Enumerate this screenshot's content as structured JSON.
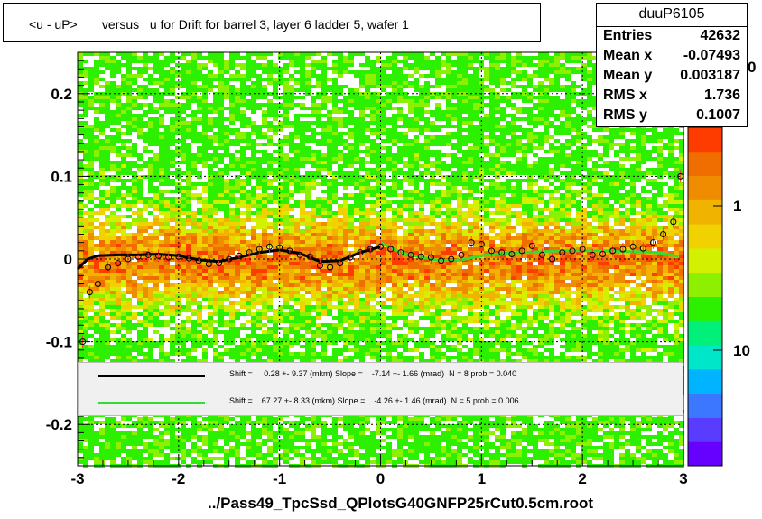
{
  "title": "<u - uP>       versus   u for Drift for barrel 3, layer 6 ladder 5, wafer 1",
  "footer": "../Pass49_TpcSsd_QPlotsG40GNFP25rCut0.5cm.root",
  "stats": {
    "name": "duuP6105",
    "rows": [
      {
        "label": "Entries",
        "value": "42632"
      },
      {
        "label": "Mean x",
        "value": "-0.07493"
      },
      {
        "label": "Mean y",
        "value": "0.003187"
      },
      {
        "label": "RMS x",
        "value": "1.736"
      },
      {
        "label": "RMS y",
        "value": "0.1007"
      }
    ]
  },
  "legend": [
    {
      "color": "#000000",
      "text": "Shift =     0.28 +- 9.37 (mkm) Slope =    -7.14 +- 1.66 (mrad)  N = 8 prob = 0.040"
    },
    {
      "color": "#33dd33",
      "text": "Shift =    67.27 +- 8.33 (mkm) Slope =    -4.26 +- 1.46 (mrad)  N = 5 prob = 0.006"
    }
  ],
  "colors": {
    "palette": [
      "#6600ff",
      "#5a3cff",
      "#3c78ff",
      "#00b4ff",
      "#00e6c8",
      "#00f07a",
      "#2cf000",
      "#8cf000",
      "#d2f000",
      "#f0d200",
      "#f0b400",
      "#f08c00",
      "#f06e00",
      "#ff3c00"
    ],
    "fit_black": "#000000",
    "fit_green": "#33dd33",
    "points": "#ff3333"
  },
  "chart_data": {
    "type": "heatmap",
    "xlim": [
      -3,
      3
    ],
    "ylim": [
      -0.25,
      0.25
    ],
    "x_ticks": [
      "-3",
      "-2",
      "-1",
      "0",
      "1",
      "2",
      "3"
    ],
    "y_ticks": [
      "-0.2",
      "-0.1",
      "0",
      "0.1",
      "0.2"
    ],
    "z_ticks": [
      "1",
      "10"
    ],
    "z_label_partial": "0",
    "profile_points": {
      "x": [
        -2.95,
        -2.88,
        -2.8,
        -2.7,
        -2.6,
        -2.5,
        -2.4,
        -2.3,
        -2.2,
        -2.1,
        -2.0,
        -1.9,
        -1.8,
        -1.7,
        -1.6,
        -1.5,
        -1.4,
        -1.3,
        -1.2,
        -1.1,
        -1.0,
        -0.9,
        -0.8,
        -0.7,
        -0.6,
        -0.5,
        -0.4,
        -0.3,
        -0.2,
        -0.1,
        0.0,
        0.1,
        0.2,
        0.3,
        0.4,
        0.5,
        0.6,
        0.7,
        0.8,
        0.9,
        1.0,
        1.1,
        1.2,
        1.3,
        1.4,
        1.5,
        1.6,
        1.7,
        1.8,
        1.9,
        2.0,
        2.1,
        2.2,
        2.3,
        2.4,
        2.5,
        2.6,
        2.7,
        2.8,
        2.9,
        2.97
      ],
      "y": [
        -0.1,
        -0.04,
        -0.03,
        -0.01,
        -0.005,
        0.0,
        0.003,
        0.005,
        0.004,
        0.002,
        0.003,
        0.001,
        -0.002,
        -0.006,
        -0.005,
        0.0,
        0.004,
        0.008,
        0.012,
        0.015,
        0.014,
        0.01,
        0.005,
        0.003,
        -0.008,
        -0.01,
        -0.005,
        0.002,
        0.008,
        0.012,
        0.015,
        0.012,
        0.008,
        0.005,
        0.003,
        0.002,
        -0.002,
        0.0,
        0.005,
        0.02,
        0.018,
        0.01,
        0.008,
        0.006,
        0.01,
        0.016,
        0.005,
        0.0,
        0.008,
        0.01,
        0.012,
        0.005,
        0.006,
        0.01,
        0.012,
        0.015,
        0.013,
        0.02,
        0.03,
        0.045,
        0.1
      ]
    },
    "fit_black": {
      "x": [
        -3.0,
        -2.9,
        -2.8,
        -2.6,
        -2.4,
        -2.2,
        -2.0,
        -1.8,
        -1.6,
        -1.4,
        -1.2,
        -1.0,
        -0.8,
        -0.6,
        -0.4,
        -0.2,
        0.0
      ],
      "y": [
        -0.012,
        0.0,
        0.004,
        0.005,
        0.005,
        0.006,
        0.004,
        -0.001,
        -0.003,
        0.002,
        0.008,
        0.011,
        0.007,
        -0.003,
        -0.002,
        0.008,
        0.015
      ]
    },
    "fit_green": {
      "x": [
        0.0,
        0.2,
        0.4,
        0.6,
        0.8,
        1.0,
        1.2,
        1.4,
        1.6,
        1.8,
        2.0,
        2.2,
        2.4,
        2.6,
        2.8,
        2.95
      ],
      "y": [
        0.02,
        0.008,
        0.002,
        -0.002,
        -0.001,
        0.004,
        0.007,
        0.008,
        0.009,
        0.01,
        0.01,
        0.01,
        0.009,
        0.009,
        0.007,
        0.003
      ]
    }
  }
}
